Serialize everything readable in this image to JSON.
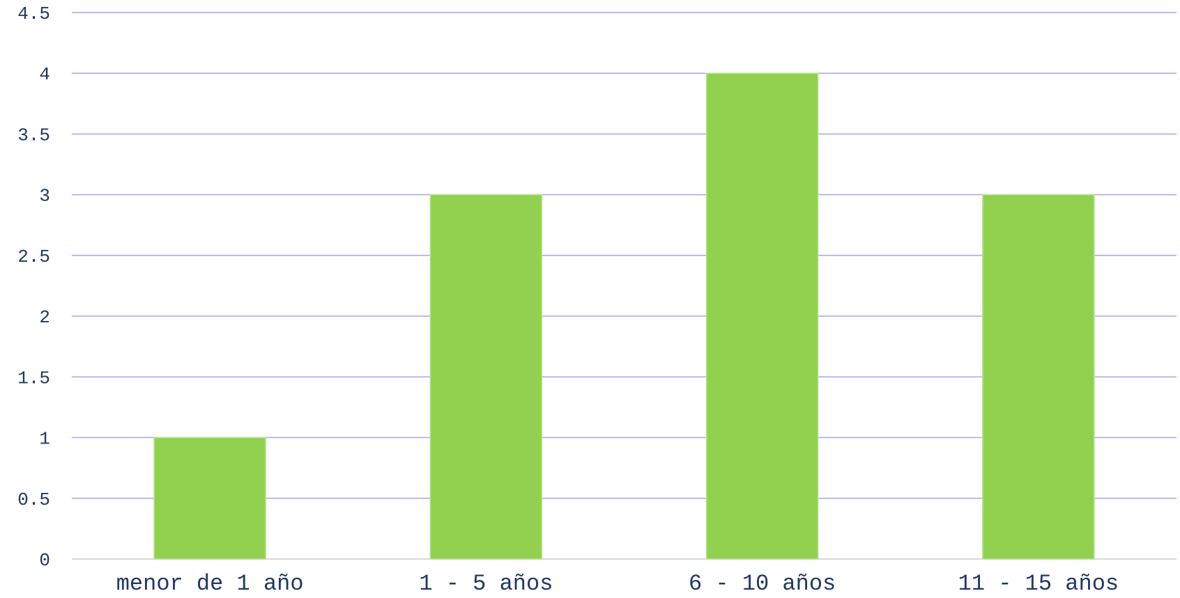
{
  "chart_data": {
    "type": "bar",
    "categories": [
      "menor de 1 año",
      "1 - 5 años",
      "6 - 10 años",
      "11 - 15 años"
    ],
    "values": [
      1,
      3,
      4,
      3
    ],
    "yticks": [
      "0",
      "0.5",
      "1",
      "1.5",
      "2",
      "2.5",
      "3",
      "3.5",
      "4",
      "4.5"
    ],
    "ylim": [
      0,
      4.5
    ],
    "grid": true,
    "colors": {
      "bar": "#92d050",
      "bar_edge": "#b8e68c",
      "grid": "#a9a2f0",
      "axis": "#d9d9d9",
      "text": "#1f3864"
    }
  }
}
